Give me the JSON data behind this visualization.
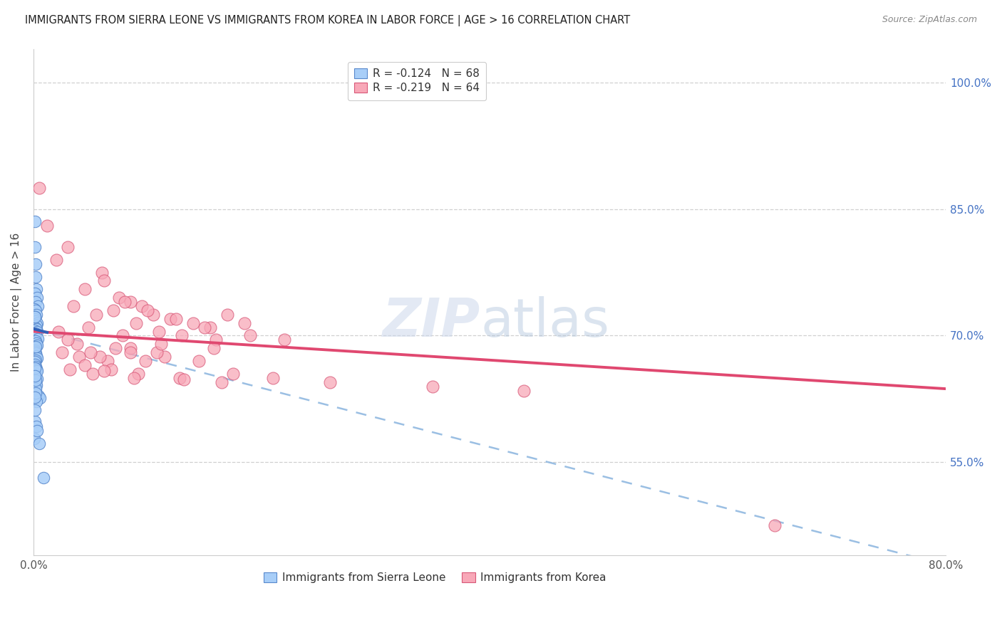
{
  "title": "IMMIGRANTS FROM SIERRA LEONE VS IMMIGRANTS FROM KOREA IN LABOR FORCE | AGE > 16 CORRELATION CHART",
  "source": "Source: ZipAtlas.com",
  "ylabel": "In Labor Force | Age > 16",
  "right_yticks": [
    55.0,
    70.0,
    85.0,
    100.0
  ],
  "right_ytick_labels": [
    "55.0%",
    "70.0%",
    "85.0%",
    "100.0%"
  ],
  "xlim": [
    0.0,
    80.0
  ],
  "ylim": [
    44.0,
    104.0
  ],
  "legend_label1": "Immigrants from Sierra Leone",
  "legend_label2": "Immigrants from Korea",
  "sl_r": "-0.124",
  "sl_n": "68",
  "k_r": "-0.219",
  "k_n": "64",
  "color_blue_fill": "#a8cef8",
  "color_blue_edge": "#5888cc",
  "color_pink_fill": "#f8a8b8",
  "color_pink_edge": "#d85878",
  "color_trendline_blue_solid": "#3060b8",
  "color_trendline_pink_solid": "#e04870",
  "color_trendline_blue_dashed": "#90b8e0",
  "grid_color": "#d0d0d0",
  "sl_x": [
    0.15,
    0.1,
    0.2,
    0.18,
    0.25,
    0.12,
    0.3,
    0.22,
    0.35,
    0.08,
    0.18,
    0.28,
    0.15,
    0.1,
    0.2,
    0.32,
    0.25,
    0.12,
    0.28,
    0.08,
    0.3,
    0.15,
    0.22,
    0.1,
    0.38,
    0.18,
    0.25,
    0.32,
    0.12,
    0.15,
    0.1,
    0.2,
    0.28,
    0.3,
    0.22,
    0.15,
    0.12,
    0.18,
    0.25,
    0.28,
    0.1,
    0.15,
    0.22,
    0.32,
    0.12,
    0.2,
    0.28,
    0.1,
    0.15,
    0.42,
    0.58,
    0.08,
    0.25,
    0.3,
    0.18,
    0.12,
    0.22,
    0.15,
    0.1,
    0.28,
    0.32,
    0.2,
    0.12,
    0.5,
    0.15,
    0.22,
    0.1,
    0.9
  ],
  "sl_y": [
    83.5,
    80.5,
    78.5,
    77.0,
    75.5,
    75.0,
    74.5,
    74.0,
    73.5,
    73.2,
    73.0,
    72.5,
    72.2,
    72.0,
    71.7,
    71.5,
    71.2,
    71.0,
    70.8,
    70.6,
    70.5,
    70.3,
    70.1,
    69.8,
    69.6,
    69.4,
    69.1,
    68.9,
    68.6,
    68.3,
    68.1,
    67.9,
    67.6,
    67.3,
    67.1,
    66.9,
    66.6,
    66.3,
    66.1,
    65.9,
    65.6,
    65.3,
    65.1,
    64.9,
    64.6,
    64.3,
    64.1,
    63.6,
    63.1,
    62.9,
    62.6,
    57.8,
    62.2,
    65.8,
    63.7,
    66.2,
    63.2,
    62.7,
    59.8,
    59.2,
    58.7,
    64.7,
    65.2,
    57.2,
    61.2,
    68.7,
    72.2,
    53.2
  ],
  "k_x": [
    0.5,
    1.2,
    2.0,
    3.0,
    4.5,
    6.0,
    7.5,
    8.5,
    9.5,
    10.5,
    12.0,
    14.0,
    15.5,
    17.0,
    18.5,
    6.2,
    8.0,
    10.0,
    12.5,
    15.0,
    3.5,
    5.5,
    7.0,
    9.0,
    11.0,
    13.0,
    16.0,
    19.0,
    22.0,
    8.5,
    2.5,
    4.0,
    6.5,
    8.5,
    11.5,
    14.5,
    3.8,
    7.2,
    10.8,
    4.5,
    6.8,
    9.2,
    12.8,
    16.5,
    5.2,
    8.8,
    13.2,
    2.2,
    4.8,
    7.8,
    11.2,
    15.8,
    5.8,
    9.8,
    3.2,
    6.2,
    17.5,
    21.0,
    26.0,
    35.0,
    3.0,
    5.0,
    43.0,
    65.0
  ],
  "k_y": [
    87.5,
    83.0,
    79.0,
    80.5,
    75.5,
    77.5,
    74.5,
    74.0,
    73.5,
    72.5,
    72.0,
    71.5,
    71.0,
    72.5,
    71.5,
    76.5,
    74.0,
    73.0,
    72.0,
    71.0,
    73.5,
    72.5,
    73.0,
    71.5,
    70.5,
    70.0,
    69.5,
    70.0,
    69.5,
    68.5,
    68.0,
    67.5,
    67.0,
    68.0,
    67.5,
    67.0,
    69.0,
    68.5,
    68.0,
    66.5,
    66.0,
    65.5,
    65.0,
    64.5,
    65.5,
    65.0,
    64.8,
    70.5,
    71.0,
    70.0,
    69.0,
    68.5,
    67.5,
    67.0,
    66.0,
    65.8,
    65.5,
    65.0,
    64.5,
    64.0,
    69.5,
    68.0,
    63.5,
    47.5
  ],
  "watermark_zip_color": "#ccd8ec",
  "watermark_atlas_color": "#b0c4dc"
}
